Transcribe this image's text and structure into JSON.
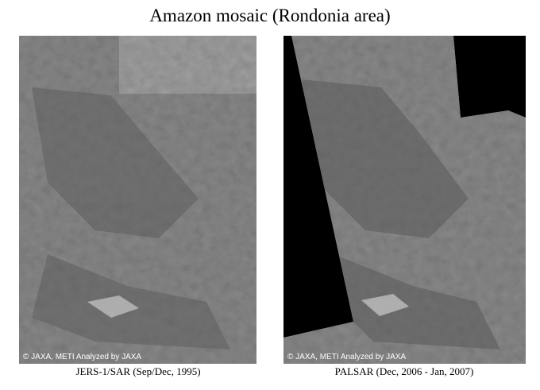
{
  "title": "Amazon mosaic (Rondonia area)",
  "panels": [
    {
      "caption": "JERS-1/SAR (Sep/Dec, 1995)",
      "credit": "© JAXA, METI  Analyzed by JAXA"
    },
    {
      "caption": "PALSAR (Dec, 2006 - Jan, 2007)",
      "credit": "© JAXA, METI  Analyzed by JAXA"
    }
  ]
}
